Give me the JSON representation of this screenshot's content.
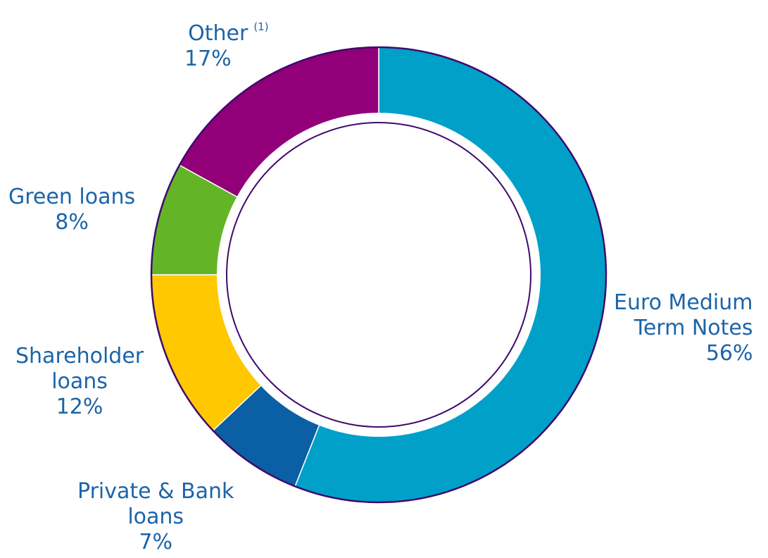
{
  "chart_data": {
    "type": "pie",
    "variant": "donut",
    "start_angle_deg": 0,
    "direction": "clockwise",
    "label_color": "#1c64a8",
    "slices": [
      {
        "name": "Euro Medium Term Notes",
        "lines": [
          "Euro Medium",
          "Term Notes"
        ],
        "value": 56,
        "percent_label": "56%",
        "color": "#00a0c8"
      },
      {
        "name": "Private & Bank loans",
        "lines": [
          "Private & Bank",
          "loans"
        ],
        "value": 7,
        "percent_label": "7%",
        "color": "#0a5fa5"
      },
      {
        "name": "Shareholder loans",
        "lines": [
          "Shareholder",
          "loans"
        ],
        "value": 12,
        "percent_label": "12%",
        "color": "#ffc800"
      },
      {
        "name": "Green loans",
        "lines": [
          "Green loans"
        ],
        "value": 8,
        "percent_label": "8%",
        "color": "#64b428"
      },
      {
        "name": "Other",
        "lines": [
          "Other"
        ],
        "footnote": "(1)",
        "value": 17,
        "percent_label": "17%",
        "color": "#910078"
      }
    ]
  }
}
